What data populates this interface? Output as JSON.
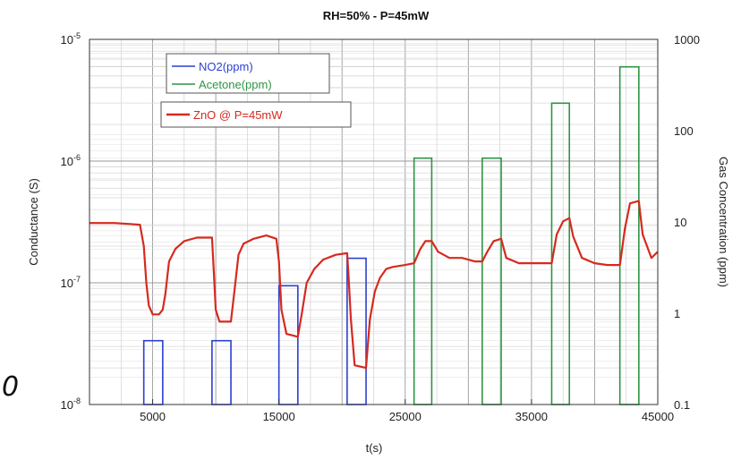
{
  "chart_data": {
    "type": "line",
    "title": "RH=50% - P=45mW",
    "xlabel": "t(s)",
    "ylabel_left": "Conductance (S)",
    "ylabel_right": "Gas Concentration (ppm)",
    "xlim": [
      0,
      45000
    ],
    "ylim_left": [
      1e-08,
      1e-05
    ],
    "ylim_right": [
      0.1,
      1000
    ],
    "yscale": "log",
    "grid": true,
    "legend_position": "top-left",
    "x_ticks": [
      5000,
      15000,
      25000,
      35000,
      45000
    ],
    "x_tick_labels": [
      "5000",
      "15000",
      "25000",
      "35000",
      "45000"
    ],
    "y_left_ticks": [
      {
        "value": 1e-08,
        "base": "10",
        "exp": "-8"
      },
      {
        "value": 1e-07,
        "base": "10",
        "exp": "-7"
      },
      {
        "value": 1e-06,
        "base": "10",
        "exp": "-6"
      },
      {
        "value": 1e-05,
        "base": "10",
        "exp": "-5"
      }
    ],
    "y_right_ticks": [
      {
        "value": 0.1,
        "label": "0.1"
      },
      {
        "value": 1,
        "label": "1"
      },
      {
        "value": 10,
        "label": "10"
      },
      {
        "value": 100,
        "label": "100"
      },
      {
        "value": 1000,
        "label": "1000"
      }
    ],
    "series": [
      {
        "name": "NO2(ppm)",
        "axis": "right",
        "color": "#2b3fd1",
        "pulses": [
          {
            "start": 4300,
            "end": 5800,
            "value": 0.5
          },
          {
            "start": 9700,
            "end": 11200,
            "value": 0.5
          },
          {
            "start": 15000,
            "end": 16500,
            "value": 2
          },
          {
            "start": 20400,
            "end": 21900,
            "value": 4
          }
        ]
      },
      {
        "name": "Acetone(ppm)",
        "axis": "right",
        "color": "#2e9444",
        "pulses": [
          {
            "start": 25700,
            "end": 27100,
            "value": 50
          },
          {
            "start": 31100,
            "end": 32600,
            "value": 50
          },
          {
            "start": 36600,
            "end": 38000,
            "value": 200
          },
          {
            "start": 42000,
            "end": 43500,
            "value": 500
          }
        ]
      },
      {
        "name": "ZnO @ P=45mW",
        "axis": "left",
        "color": "#d62a1e",
        "x": [
          0,
          2000,
          4000,
          4300,
          4500,
          4700,
          5000,
          5500,
          5800,
          6000,
          6300,
          6800,
          7500,
          8500,
          9700,
          9800,
          10000,
          10300,
          11200,
          11500,
          11800,
          12200,
          13000,
          14000,
          14800,
          15000,
          15200,
          15600,
          16500,
          16800,
          17200,
          17800,
          18500,
          19500,
          20400,
          20500,
          20700,
          21000,
          21900,
          22200,
          22600,
          23000,
          23500,
          24000,
          25000,
          25700,
          26200,
          26600,
          27100,
          27600,
          28500,
          29500,
          30500,
          31100,
          31500,
          32000,
          32600,
          33000,
          34000,
          35500,
          36600,
          37000,
          37500,
          38000,
          38300,
          39000,
          40000,
          41000,
          42000,
          42400,
          42800,
          43500,
          43800,
          44500,
          45000
        ],
        "y": [
          3.1e-07,
          3.1e-07,
          3e-07,
          2e-07,
          1e-07,
          6.5e-08,
          5.5e-08,
          5.5e-08,
          6e-08,
          8e-08,
          1.5e-07,
          1.9e-07,
          2.2e-07,
          2.35e-07,
          2.35e-07,
          1.5e-07,
          6e-08,
          4.8e-08,
          4.8e-08,
          9e-08,
          1.7e-07,
          2.1e-07,
          2.3e-07,
          2.45e-07,
          2.3e-07,
          1.5e-07,
          6e-08,
          3.8e-08,
          3.6e-08,
          5.5e-08,
          1e-07,
          1.3e-07,
          1.55e-07,
          1.7e-07,
          1.75e-07,
          1.2e-07,
          5e-08,
          2.1e-08,
          2e-08,
          5e-08,
          8.5e-08,
          1.1e-07,
          1.3e-07,
          1.35e-07,
          1.4e-07,
          1.45e-07,
          1.9e-07,
          2.2e-07,
          2.2e-07,
          1.8e-07,
          1.6e-07,
          1.6e-07,
          1.5e-07,
          1.5e-07,
          1.8e-07,
          2.2e-07,
          2.3e-07,
          1.6e-07,
          1.45e-07,
          1.45e-07,
          1.45e-07,
          2.5e-07,
          3.2e-07,
          3.4e-07,
          2.4e-07,
          1.6e-07,
          1.45e-07,
          1.4e-07,
          1.4e-07,
          2.8e-07,
          4.5e-07,
          4.7e-07,
          2.5e-07,
          1.6e-07,
          1.8e-07
        ]
      }
    ]
  },
  "stray_text": "0"
}
